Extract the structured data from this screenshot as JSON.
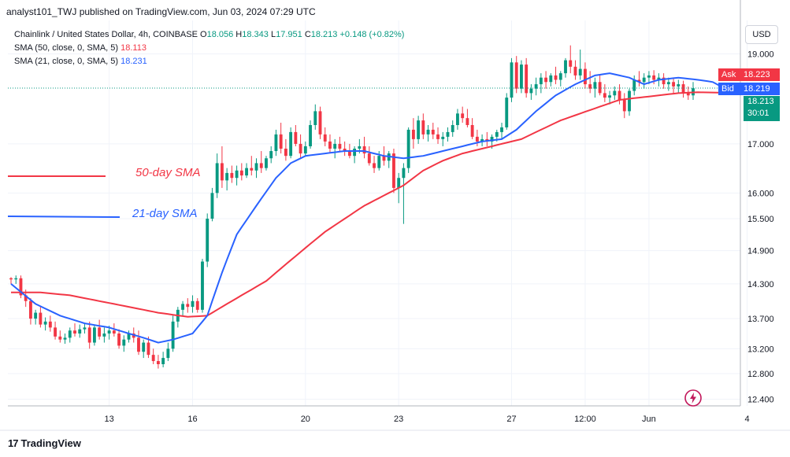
{
  "header": {
    "published": "analyst101_TWJ published on TradingView.com, Jun 03, 2024 07:29 UTC"
  },
  "legend": {
    "symbol": "Chainlink / United States Dollar, 4h, COINBASE",
    "ohlc": {
      "O_label": "O",
      "O": "18.056",
      "H_label": "H",
      "H": "18.343",
      "L_label": "L",
      "L": "17.951",
      "C_label": "C",
      "C": "18.213",
      "change": "+0.148 (+0.82%)"
    },
    "sma50": {
      "label": "SMA (50, close, 0, SMA, 5)",
      "value": "18.113"
    },
    "sma21": {
      "label": "SMA (21, close, 0, SMA, 5)",
      "value": "18.231"
    }
  },
  "currency": "USD",
  "price_tags": {
    "ask_label": "Ask",
    "ask": "18.223",
    "bid_label": "Bid",
    "bid": "18.219",
    "last": "18.213",
    "countdown": "30:01"
  },
  "annotations": {
    "sma50_text": "50-day SMA",
    "sma21_text": "21-day SMA"
  },
  "brand": "TradingView",
  "colors": {
    "up": "#089981",
    "down": "#f23645",
    "sma50": "#f23645",
    "sma21": "#2962ff",
    "bid": "#2962ff",
    "ask": "#f23645",
    "grid": "#f0f3fa"
  },
  "chart_data": {
    "type": "candlestick",
    "y_ticks": [
      "12.400",
      "12.800",
      "13.200",
      "13.700",
      "14.300",
      "14.900",
      "15.500",
      "16.000",
      "17.000",
      "19.000"
    ],
    "y_tick_values": [
      12.4,
      12.8,
      13.2,
      13.7,
      14.3,
      14.9,
      15.5,
      16.0,
      17.0,
      19.0
    ],
    "x_ticks": [
      "13",
      "16",
      "20",
      "23",
      "27",
      "12:00",
      "Jun",
      "4"
    ],
    "x_tick_index": [
      20,
      37,
      60,
      79,
      102,
      117,
      130,
      150
    ],
    "log_scale": true,
    "ylim": [
      12.3,
      19.8
    ],
    "grid": true,
    "candles": [
      [
        14.4,
        14.42,
        14.3,
        14.38
      ],
      [
        14.38,
        14.45,
        14.3,
        14.4
      ],
      [
        14.4,
        14.45,
        14.05,
        14.1
      ],
      [
        14.1,
        14.2,
        13.9,
        14.0
      ],
      [
        14.0,
        14.05,
        13.6,
        13.7
      ],
      [
        13.7,
        13.85,
        13.6,
        13.8
      ],
      [
        13.8,
        13.9,
        13.55,
        13.6
      ],
      [
        13.6,
        13.72,
        13.5,
        13.65
      ],
      [
        13.65,
        13.75,
        13.48,
        13.55
      ],
      [
        13.55,
        13.65,
        13.35,
        13.4
      ],
      [
        13.4,
        13.5,
        13.3,
        13.35
      ],
      [
        13.35,
        13.45,
        13.28,
        13.38
      ],
      [
        13.38,
        13.55,
        13.3,
        13.5
      ],
      [
        13.5,
        13.62,
        13.4,
        13.45
      ],
      [
        13.45,
        13.6,
        13.38,
        13.52
      ],
      [
        13.52,
        13.62,
        13.45,
        13.55
      ],
      [
        13.55,
        13.65,
        13.2,
        13.3
      ],
      [
        13.3,
        13.6,
        13.25,
        13.55
      ],
      [
        13.55,
        13.68,
        13.35,
        13.4
      ],
      [
        13.4,
        13.55,
        13.3,
        13.45
      ],
      [
        13.45,
        13.58,
        13.35,
        13.5
      ],
      [
        13.5,
        13.62,
        13.4,
        13.45
      ],
      [
        13.45,
        13.52,
        13.2,
        13.25
      ],
      [
        13.25,
        13.42,
        13.15,
        13.35
      ],
      [
        13.35,
        13.5,
        13.3,
        13.45
      ],
      [
        13.45,
        13.55,
        13.3,
        13.38
      ],
      [
        13.38,
        13.5,
        13.1,
        13.15
      ],
      [
        13.15,
        13.35,
        13.05,
        13.3
      ],
      [
        13.3,
        13.4,
        13.05,
        13.1
      ],
      [
        13.1,
        13.2,
        12.95,
        13.0
      ],
      [
        13.0,
        13.1,
        12.88,
        12.95
      ],
      [
        12.95,
        13.15,
        12.9,
        13.05
      ],
      [
        13.05,
        13.3,
        13.0,
        13.2
      ],
      [
        13.2,
        13.75,
        13.15,
        13.65
      ],
      [
        13.65,
        13.9,
        13.55,
        13.85
      ],
      [
        13.85,
        14.0,
        13.75,
        13.95
      ],
      [
        13.95,
        14.05,
        13.8,
        13.9
      ],
      [
        13.9,
        14.1,
        13.8,
        14.0
      ],
      [
        14.0,
        14.05,
        13.8,
        13.85
      ],
      [
        13.85,
        14.75,
        13.8,
        14.7
      ],
      [
        14.7,
        15.6,
        14.6,
        15.5
      ],
      [
        15.5,
        16.1,
        15.45,
        16.0
      ],
      [
        16.0,
        16.8,
        15.9,
        16.6
      ],
      [
        16.6,
        16.95,
        16.1,
        16.25
      ],
      [
        16.25,
        16.5,
        16.05,
        16.4
      ],
      [
        16.4,
        16.55,
        16.2,
        16.3
      ],
      [
        16.3,
        16.55,
        16.15,
        16.45
      ],
      [
        16.45,
        16.6,
        16.25,
        16.35
      ],
      [
        16.35,
        16.6,
        16.3,
        16.5
      ],
      [
        16.5,
        16.75,
        16.35,
        16.45
      ],
      [
        16.45,
        16.7,
        16.3,
        16.6
      ],
      [
        16.6,
        16.85,
        16.4,
        16.5
      ],
      [
        16.5,
        16.75,
        16.45,
        16.7
      ],
      [
        16.7,
        16.95,
        16.6,
        16.85
      ],
      [
        16.85,
        17.3,
        16.75,
        17.2
      ],
      [
        17.2,
        17.45,
        16.8,
        16.9
      ],
      [
        16.9,
        17.1,
        16.65,
        16.75
      ],
      [
        16.75,
        17.35,
        16.7,
        17.25
      ],
      [
        17.25,
        17.4,
        16.95,
        17.0
      ],
      [
        17.0,
        17.2,
        16.7,
        16.8
      ],
      [
        16.8,
        17.05,
        16.75,
        16.95
      ],
      [
        16.95,
        17.5,
        16.9,
        17.4
      ],
      [
        17.4,
        17.85,
        17.3,
        17.7
      ],
      [
        17.7,
        17.8,
        17.1,
        17.2
      ],
      [
        17.2,
        17.35,
        16.95,
        17.05
      ],
      [
        17.05,
        17.2,
        16.8,
        16.9
      ],
      [
        16.9,
        17.1,
        16.7,
        17.0
      ],
      [
        17.0,
        17.15,
        16.85,
        16.9
      ],
      [
        16.9,
        17.05,
        16.75,
        16.85
      ],
      [
        16.85,
        17.0,
        16.7,
        16.75
      ],
      [
        16.75,
        16.95,
        16.6,
        16.9
      ],
      [
        16.9,
        17.1,
        16.8,
        16.95
      ],
      [
        16.95,
        17.15,
        16.7,
        16.8
      ],
      [
        16.8,
        16.95,
        16.55,
        16.6
      ],
      [
        16.6,
        16.75,
        16.4,
        16.5
      ],
      [
        16.5,
        16.85,
        16.45,
        16.75
      ],
      [
        16.75,
        16.95,
        16.55,
        16.65
      ],
      [
        16.65,
        16.85,
        16.5,
        16.8
      ],
      [
        16.8,
        16.9,
        16.0,
        16.1
      ],
      [
        16.1,
        16.4,
        15.8,
        16.3
      ],
      [
        16.3,
        16.6,
        15.4,
        16.5
      ],
      [
        16.5,
        17.35,
        16.4,
        17.3
      ],
      [
        17.3,
        17.55,
        16.9,
        17.1
      ],
      [
        17.1,
        17.6,
        17.0,
        17.5
      ],
      [
        17.5,
        17.65,
        17.1,
        17.2
      ],
      [
        17.2,
        17.4,
        17.05,
        17.3
      ],
      [
        17.3,
        17.45,
        17.1,
        17.2
      ],
      [
        17.2,
        17.35,
        17.0,
        17.1
      ],
      [
        17.1,
        17.25,
        16.95,
        17.15
      ],
      [
        17.15,
        17.35,
        17.05,
        17.25
      ],
      [
        17.25,
        17.5,
        17.15,
        17.4
      ],
      [
        17.4,
        17.75,
        17.3,
        17.65
      ],
      [
        17.65,
        17.8,
        17.45,
        17.55
      ],
      [
        17.55,
        17.75,
        17.35,
        17.4
      ],
      [
        17.4,
        17.55,
        17.1,
        17.15
      ],
      [
        17.15,
        17.3,
        16.95,
        17.05
      ],
      [
        17.05,
        17.2,
        16.95,
        17.1
      ],
      [
        17.1,
        17.25,
        16.95,
        17.05
      ],
      [
        17.05,
        17.2,
        16.9,
        17.15
      ],
      [
        17.15,
        17.3,
        17.05,
        17.25
      ],
      [
        17.25,
        17.45,
        17.1,
        17.35
      ],
      [
        17.35,
        18.1,
        17.3,
        18.0
      ],
      [
        18.0,
        18.9,
        17.9,
        18.8
      ],
      [
        18.8,
        18.95,
        18.1,
        18.2
      ],
      [
        18.2,
        18.85,
        18.1,
        18.75
      ],
      [
        18.75,
        18.9,
        18.0,
        18.1
      ],
      [
        18.1,
        18.3,
        17.95,
        18.2
      ],
      [
        18.2,
        18.45,
        18.05,
        18.3
      ],
      [
        18.3,
        18.55,
        18.1,
        18.45
      ],
      [
        18.45,
        18.6,
        18.2,
        18.35
      ],
      [
        18.35,
        18.55,
        18.25,
        18.5
      ],
      [
        18.5,
        18.7,
        18.3,
        18.4
      ],
      [
        18.4,
        18.6,
        18.25,
        18.55
      ],
      [
        18.55,
        18.9,
        18.45,
        18.85
      ],
      [
        18.85,
        19.2,
        18.55,
        18.7
      ],
      [
        18.7,
        18.85,
        18.4,
        18.5
      ],
      [
        18.5,
        19.1,
        18.4,
        18.65
      ],
      [
        18.65,
        18.8,
        18.2,
        18.3
      ],
      [
        18.3,
        18.6,
        18.1,
        18.2
      ],
      [
        18.2,
        18.45,
        18.0,
        18.35
      ],
      [
        18.35,
        18.5,
        18.05,
        18.1
      ],
      [
        18.1,
        18.3,
        17.9,
        18.0
      ],
      [
        18.0,
        18.15,
        17.85,
        18.05
      ],
      [
        18.05,
        18.25,
        17.95,
        18.15
      ],
      [
        18.15,
        18.3,
        17.85,
        17.95
      ],
      [
        17.95,
        18.1,
        17.55,
        17.7
      ],
      [
        17.7,
        18.2,
        17.6,
        18.15
      ],
      [
        18.15,
        18.5,
        18.05,
        18.4
      ],
      [
        18.4,
        18.6,
        18.25,
        18.35
      ],
      [
        18.35,
        18.55,
        18.2,
        18.45
      ],
      [
        18.45,
        18.6,
        18.3,
        18.5
      ],
      [
        18.5,
        18.62,
        18.3,
        18.4
      ],
      [
        18.4,
        18.55,
        18.25,
        18.45
      ],
      [
        18.45,
        18.55,
        18.2,
        18.3
      ],
      [
        18.3,
        18.45,
        18.15,
        18.35
      ],
      [
        18.35,
        18.45,
        18.1,
        18.25
      ],
      [
        18.25,
        18.4,
        18.1,
        18.3
      ],
      [
        18.3,
        18.38,
        18.0,
        18.1
      ],
      [
        18.1,
        18.25,
        17.95,
        18.05
      ],
      [
        18.05,
        18.35,
        17.95,
        18.21
      ]
    ],
    "sma21_anchors": [
      [
        0,
        14.3
      ],
      [
        5,
        13.95
      ],
      [
        10,
        13.75
      ],
      [
        15,
        13.62
      ],
      [
        20,
        13.55
      ],
      [
        24,
        13.45
      ],
      [
        27,
        13.38
      ],
      [
        30,
        13.3
      ],
      [
        33,
        13.35
      ],
      [
        37,
        13.45
      ],
      [
        40,
        13.75
      ],
      [
        43,
        14.5
      ],
      [
        46,
        15.2
      ],
      [
        50,
        15.75
      ],
      [
        54,
        16.3
      ],
      [
        57,
        16.6
      ],
      [
        60,
        16.75
      ],
      [
        64,
        16.8
      ],
      [
        68,
        16.85
      ],
      [
        72,
        16.85
      ],
      [
        76,
        16.75
      ],
      [
        80,
        16.7
      ],
      [
        84,
        16.75
      ],
      [
        88,
        16.85
      ],
      [
        92,
        16.95
      ],
      [
        96,
        17.05
      ],
      [
        100,
        17.1
      ],
      [
        103,
        17.3
      ],
      [
        107,
        17.7
      ],
      [
        111,
        18.05
      ],
      [
        115,
        18.3
      ],
      [
        119,
        18.5
      ],
      [
        122,
        18.55
      ],
      [
        126,
        18.45
      ],
      [
        129,
        18.3
      ],
      [
        132,
        18.4
      ],
      [
        136,
        18.45
      ],
      [
        140,
        18.4
      ],
      [
        143,
        18.35
      ],
      [
        145,
        18.23
      ]
    ],
    "sma50_anchors": [
      [
        0,
        14.15
      ],
      [
        6,
        14.15
      ],
      [
        12,
        14.1
      ],
      [
        18,
        14.0
      ],
      [
        24,
        13.9
      ],
      [
        30,
        13.8
      ],
      [
        36,
        13.73
      ],
      [
        40,
        13.75
      ],
      [
        44,
        13.95
      ],
      [
        48,
        14.15
      ],
      [
        52,
        14.35
      ],
      [
        56,
        14.65
      ],
      [
        60,
        14.95
      ],
      [
        64,
        15.25
      ],
      [
        68,
        15.5
      ],
      [
        72,
        15.75
      ],
      [
        76,
        15.95
      ],
      [
        80,
        16.15
      ],
      [
        84,
        16.45
      ],
      [
        88,
        16.65
      ],
      [
        92,
        16.8
      ],
      [
        96,
        16.9
      ],
      [
        100,
        17.0
      ],
      [
        104,
        17.1
      ],
      [
        108,
        17.3
      ],
      [
        112,
        17.5
      ],
      [
        116,
        17.65
      ],
      [
        120,
        17.8
      ],
      [
        124,
        17.95
      ],
      [
        128,
        18.0
      ],
      [
        132,
        18.05
      ],
      [
        136,
        18.1
      ],
      [
        140,
        18.12
      ],
      [
        145,
        18.11
      ]
    ]
  }
}
